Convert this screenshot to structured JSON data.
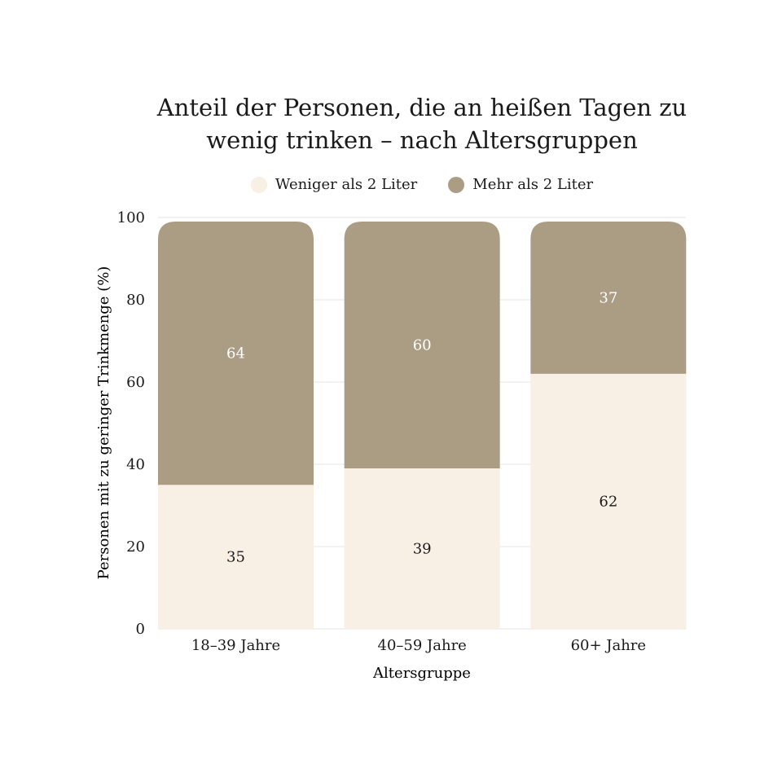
{
  "chart_data": {
    "type": "bar",
    "stacked": true,
    "title": [
      "Anteil der Personen, die an heißen Tagen zu",
      "wenig trinken – nach Altersgruppen"
    ],
    "xlabel": "Altersgruppe",
    "ylabel": "Personen mit zu geringer Trinkmenge (%)",
    "ylim": [
      0,
      100
    ],
    "yticks": [
      0,
      20,
      40,
      60,
      80,
      100
    ],
    "grid": true,
    "legend_position": "top-center",
    "categories": [
      "18–39 Jahre",
      "40–59 Jahre",
      "60+ Jahre"
    ],
    "series": [
      {
        "name": "Weniger als 2 Liter",
        "color": "#f8efe5",
        "label_color": "#1a1a1a",
        "values": [
          35,
          39,
          62
        ]
      },
      {
        "name": "Mehr als 2 Liter",
        "color": "#ab9c84",
        "label_color": "#ffffff",
        "values": [
          64,
          60,
          37
        ]
      }
    ]
  }
}
